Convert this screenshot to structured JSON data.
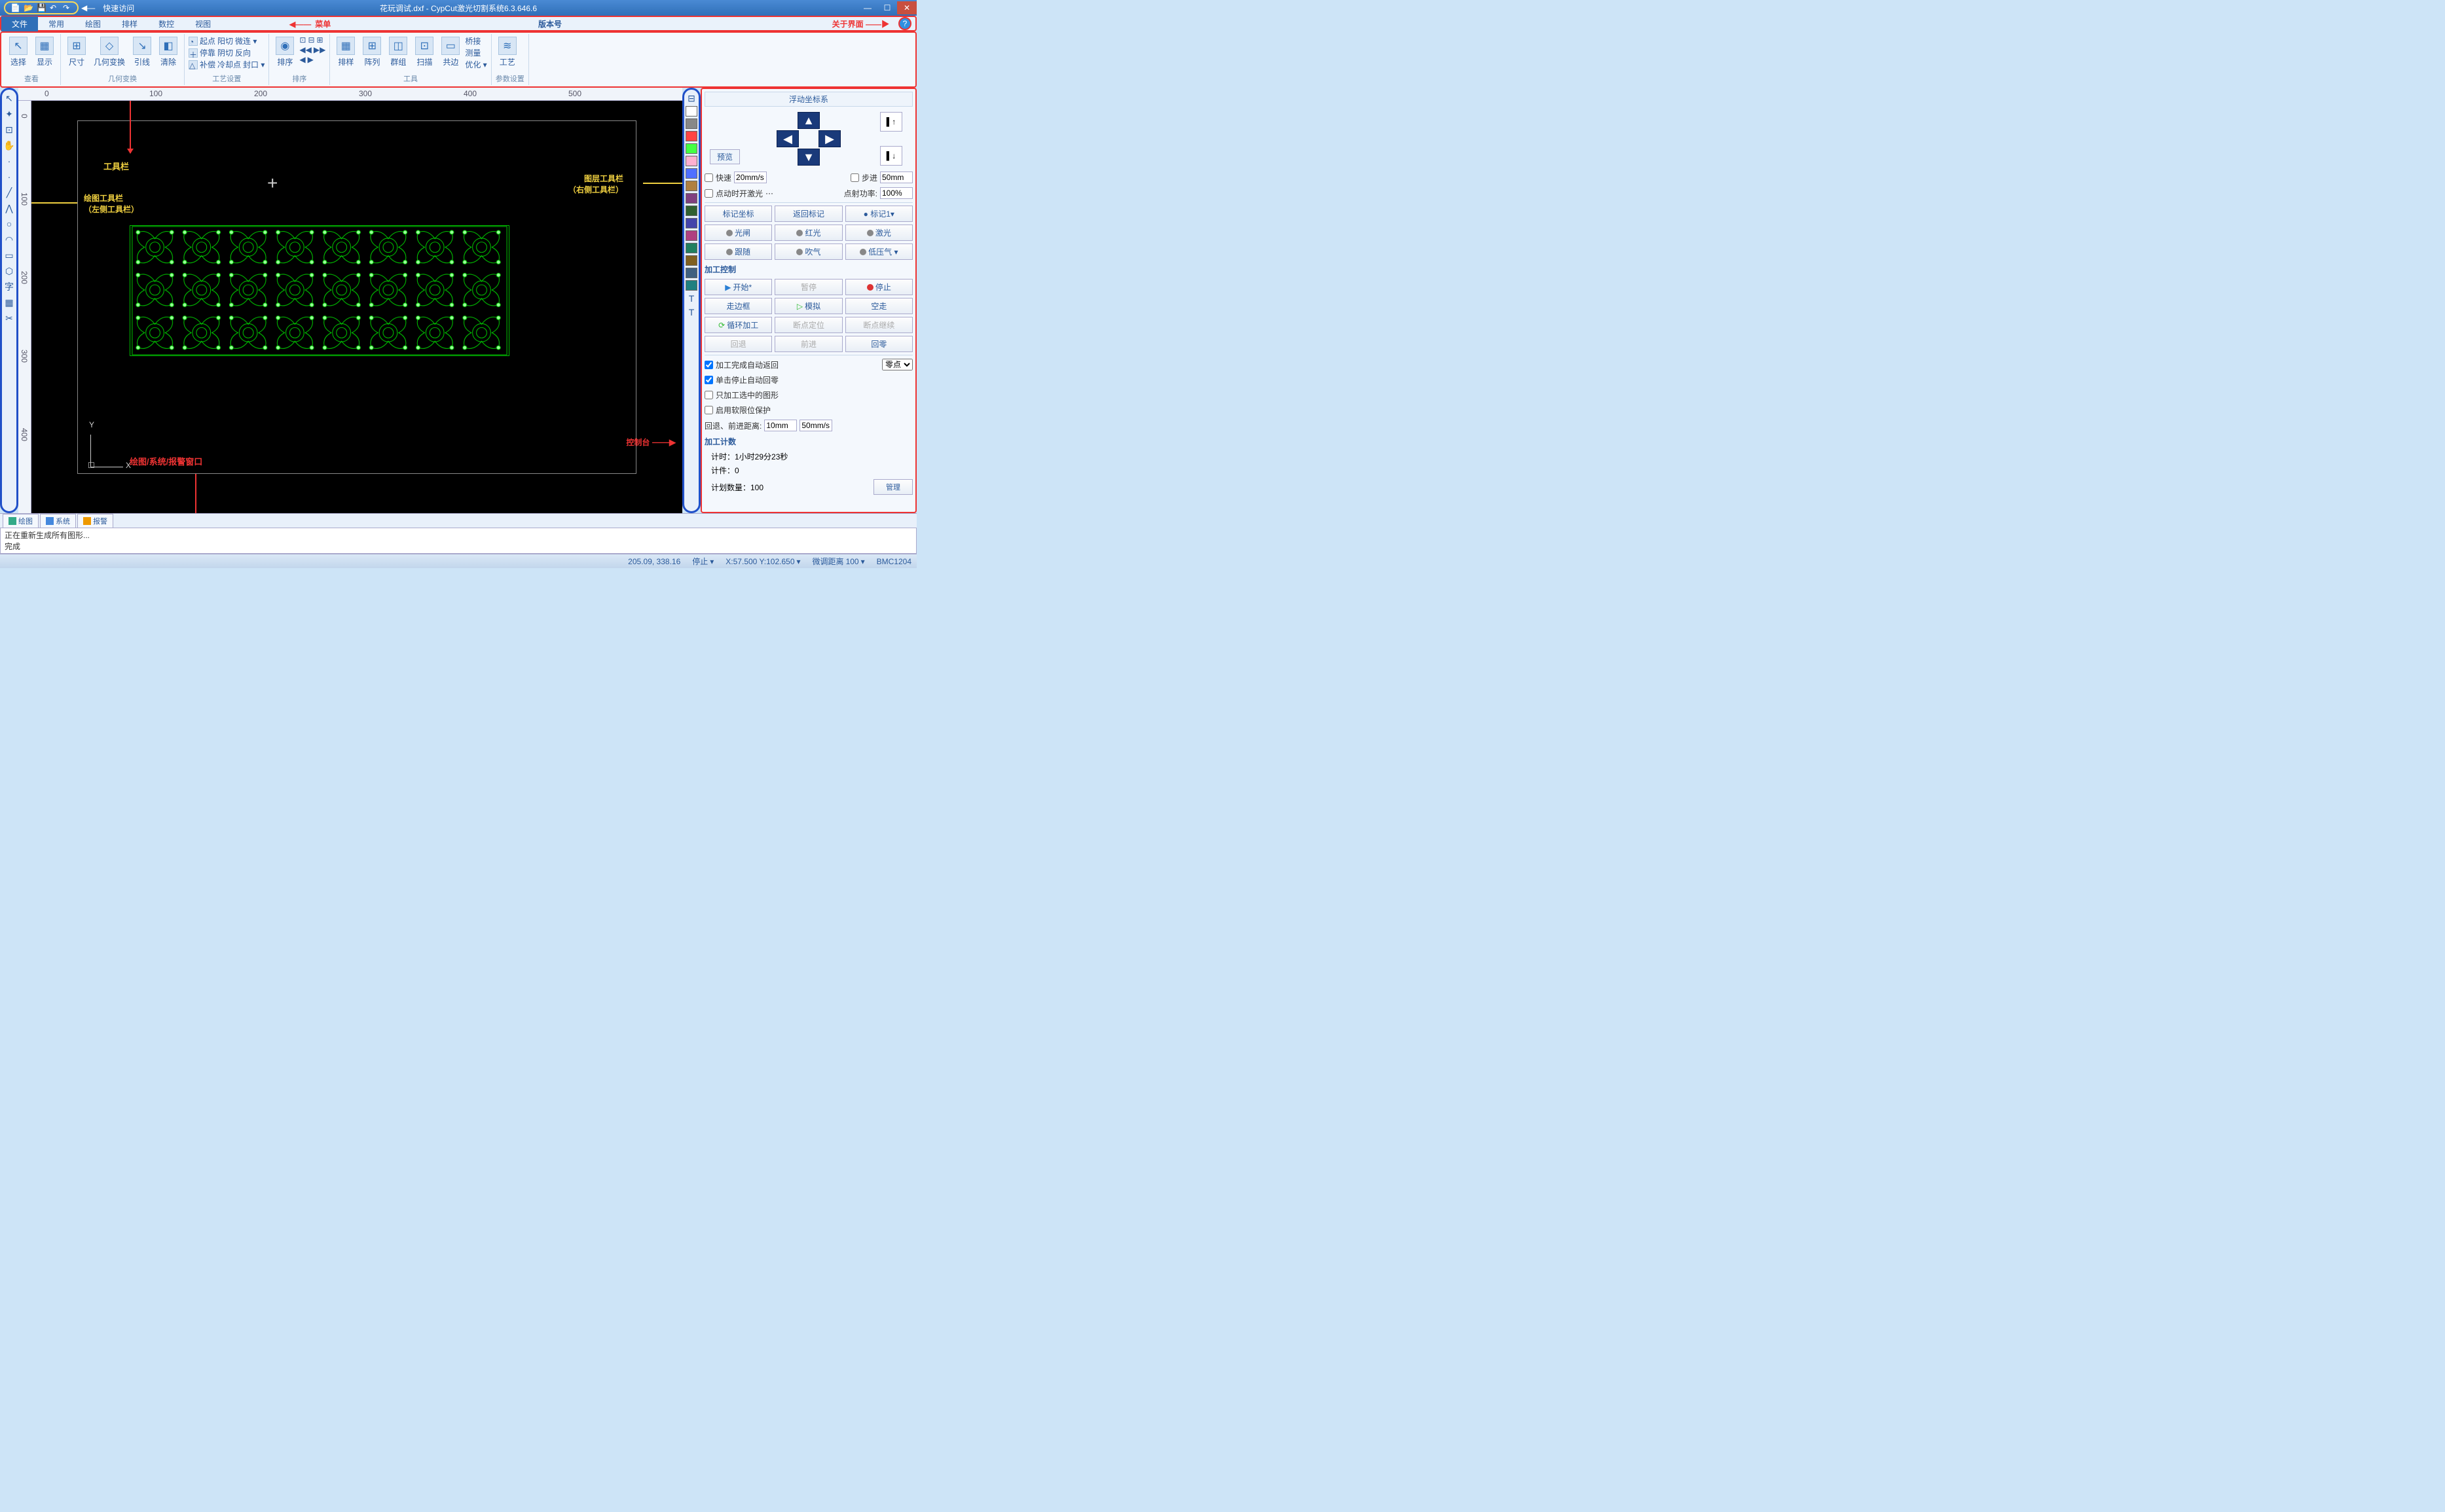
{
  "titlebar": {
    "qat_label": "快速访问",
    "title": "花玩调试.dxf - CypCut激光切割系统6.3.646.6"
  },
  "menu": {
    "tabs": [
      "文件",
      "常用",
      "绘图",
      "排样",
      "数控",
      "视图"
    ],
    "active": 0,
    "ann_menu": "菜单",
    "ann_version": "版本号",
    "ann_about": "关于界面"
  },
  "ribbon": {
    "groups": [
      {
        "label": "查看",
        "big": [
          {
            "t": "选择",
            "i": "↖"
          },
          {
            "t": "显示",
            "i": "▦"
          }
        ]
      },
      {
        "label": "几何变换",
        "big": [
          {
            "t": "尺寸",
            "i": "⊞"
          },
          {
            "t": "几何变换",
            "i": "◇"
          },
          {
            "t": "引线",
            "i": "↘"
          },
          {
            "t": "清除",
            "i": "◧"
          }
        ]
      },
      {
        "label": "工艺设置",
        "rows": [
          [
            "起点",
            "阳切",
            "微连 ▾"
          ],
          [
            "停靠",
            "阴切",
            "反向"
          ],
          [
            "补偿",
            "冷却点",
            "封口 ▾"
          ]
        ],
        "icons": [
          "◔",
          "＋",
          "△"
        ]
      },
      {
        "label": "排序",
        "big": [
          {
            "t": "排序",
            "i": "◉"
          }
        ],
        "rows": [
          [
            "⊡",
            "⊟",
            "⊞"
          ],
          [
            "◀◀",
            "▶▶",
            ""
          ],
          [
            "◀",
            "▶",
            ""
          ]
        ]
      },
      {
        "label": "工具",
        "big": [
          {
            "t": "排样",
            "i": "▦"
          },
          {
            "t": "阵列",
            "i": "⊞"
          },
          {
            "t": "群组",
            "i": "◫"
          },
          {
            "t": "扫描",
            "i": "⊡"
          },
          {
            "t": "共边",
            "i": "▭"
          }
        ],
        "rows": [
          [
            "桥接"
          ],
          [
            "测量"
          ],
          [
            "优化 ▾"
          ]
        ]
      },
      {
        "label": "参数设置",
        "big": [
          {
            "t": "工艺",
            "i": "≋"
          }
        ]
      }
    ]
  },
  "ruler": {
    "h": [
      0,
      100,
      200,
      300,
      400,
      500
    ],
    "v": [
      0,
      100,
      200,
      300,
      400
    ]
  },
  "annotations": {
    "toolbar": "工具栏",
    "draw_toolbar_l1": "绘图工具栏",
    "draw_toolbar_l2": "（左侧工具栏）",
    "layer_toolbar_l1": "图层工具栏",
    "layer_toolbar_l2": "（右侧工具栏）",
    "drawing_window": "绘图/系统/报警窗口",
    "control": "控制台"
  },
  "layer_colors": [
    "#ffffff",
    "#888888",
    "#ff4444",
    "#44ff44",
    "#ffb0d0",
    "#5070ff",
    "#b08040",
    "#804080",
    "#306030",
    "#4444aa",
    "#b04080",
    "#208060",
    "#806020",
    "#406080",
    "#208080"
  ],
  "cp": {
    "header": "浮动坐标系",
    "preview": "预览",
    "fast": "快速",
    "fast_v": "20mm/s",
    "step": "步进",
    "step_v": "50mm",
    "laser_on": "点动时开激光",
    "power": "点射功率:",
    "power_v": "100%",
    "r1": [
      "标记坐标",
      "返回标记",
      "● 标记1▾"
    ],
    "r2": [
      "光闸",
      "红光",
      "激光"
    ],
    "r3": [
      "跟随",
      "吹气",
      "低压气 ▾"
    ],
    "proc_ctrl": "加工控制",
    "r4": [
      {
        "t": "开始*",
        "c": "blue"
      },
      {
        "t": "暂停",
        "c": "dis"
      },
      {
        "t": "停止",
        "c": "red"
      }
    ],
    "r5": [
      {
        "t": "走边框",
        "c": ""
      },
      {
        "t": "模拟",
        "c": "green"
      },
      {
        "t": "空走",
        "c": ""
      }
    ],
    "r6": [
      {
        "t": "循环加工",
        "c": "green"
      },
      {
        "t": "断点定位",
        "c": "dis"
      },
      {
        "t": "断点继续",
        "c": "dis"
      }
    ],
    "r7": [
      {
        "t": "回退",
        "c": "dis"
      },
      {
        "t": "前进",
        "c": "dis"
      },
      {
        "t": "回零",
        "c": ""
      }
    ],
    "chk1": "加工完成自动返回",
    "chk1_sel": "零点",
    "chk2": "单击停止自动回零",
    "chk3": "只加工选中的图形",
    "chk4": "启用软限位保护",
    "retreat": "回退、前进距离:",
    "retreat_v1": "10mm",
    "retreat_v2": "50mm/s",
    "count_title": "加工计数",
    "count_time": "计时：1小时29分23秒",
    "count_pcs": "计件：0",
    "count_plan": "计划数量：100",
    "manage": "管理"
  },
  "bottom_tabs": [
    {
      "t": "绘图",
      "c": "#3a8"
    },
    {
      "t": "系统",
      "c": "#48d"
    },
    {
      "t": "报警",
      "c": "#e90"
    }
  ],
  "console": {
    "l1": "正在重新生成所有图形...",
    "l2": "完成"
  },
  "status": {
    "coord": "205.09, 338.16",
    "state": "停止",
    "xy": "X:57.500 Y:102.650",
    "fine": "微调距离",
    "fine_v": "100",
    "dev": "BMC1204"
  }
}
